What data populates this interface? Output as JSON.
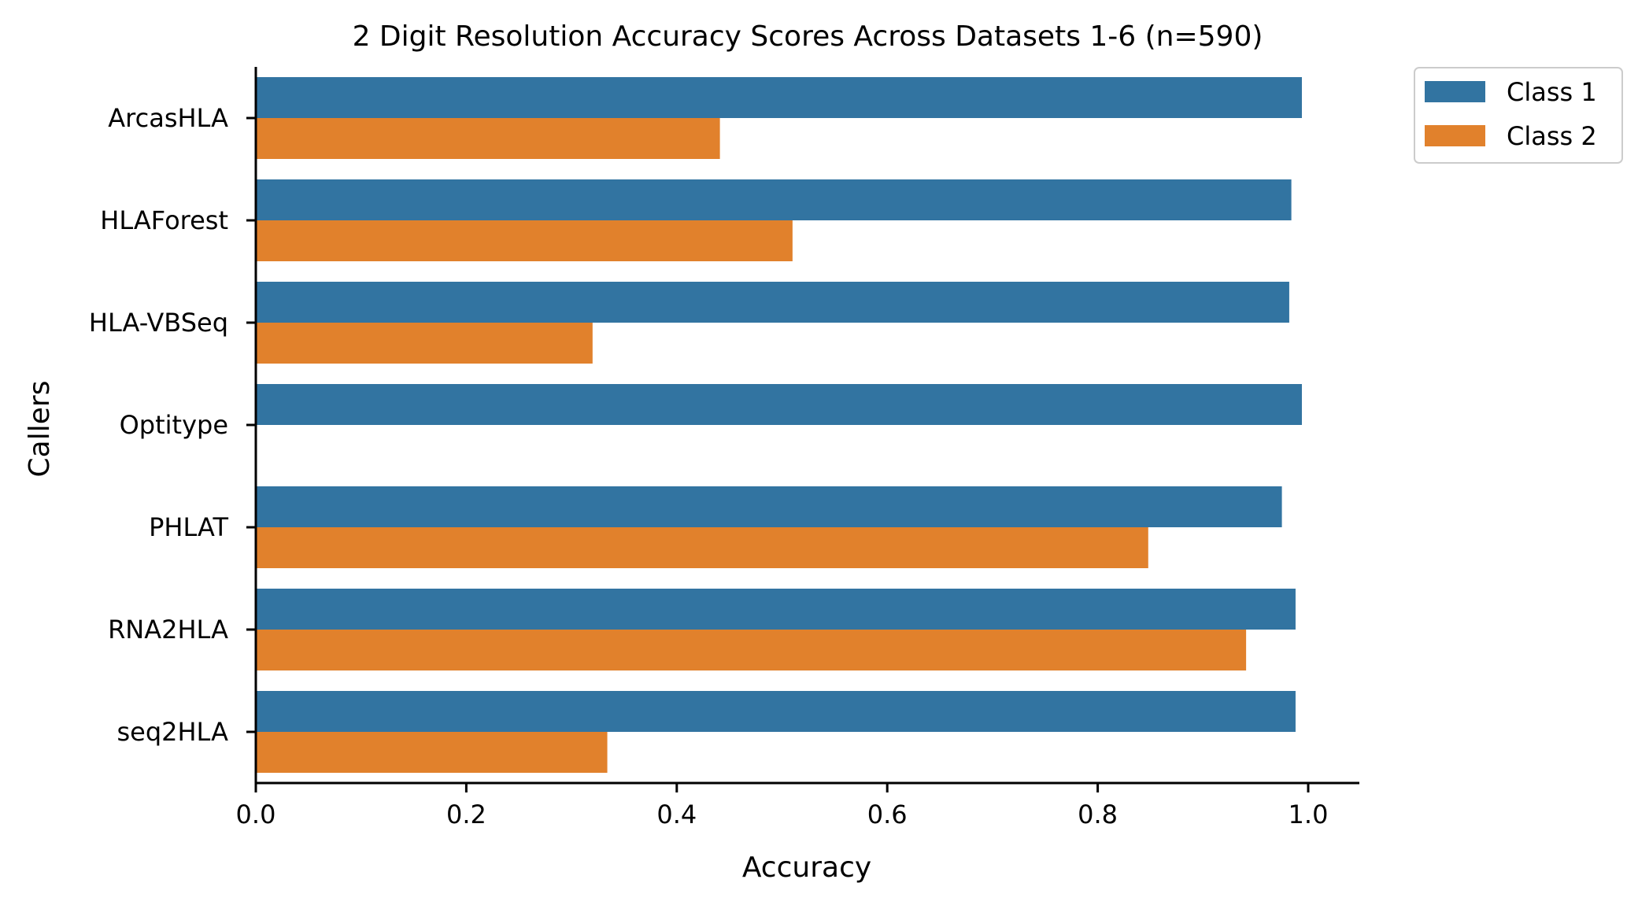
{
  "chart_data": {
    "type": "bar",
    "orientation": "horizontal",
    "title": "2 Digit Resolution Accuracy Scores Across Datasets 1-6 (n=590)",
    "xlabel": "Accuracy",
    "ylabel": "Callers",
    "categories": [
      "ArcasHLA",
      "HLAForest",
      "HLA-VBSeq",
      "Optitype",
      "PHLAT",
      "RNA2HLA",
      "seq2HLA"
    ],
    "series": [
      {
        "name": "Class 1",
        "color": "#3274a1",
        "values": [
          0.994,
          0.984,
          0.982,
          0.994,
          0.975,
          0.988,
          0.988
        ]
      },
      {
        "name": "Class 2",
        "color": "#e1812c",
        "values": [
          0.441,
          0.51,
          0.32,
          0.0,
          0.848,
          0.941,
          0.334
        ]
      }
    ],
    "xlim": [
      0,
      1.045
    ],
    "xticks": [
      0.0,
      0.2,
      0.4,
      0.6,
      0.8,
      1.0
    ],
    "xtick_labels": [
      "0.0",
      "0.2",
      "0.4",
      "0.6",
      "0.8",
      "1.0"
    ],
    "grid": false,
    "legend_position": "outside-top-right"
  }
}
